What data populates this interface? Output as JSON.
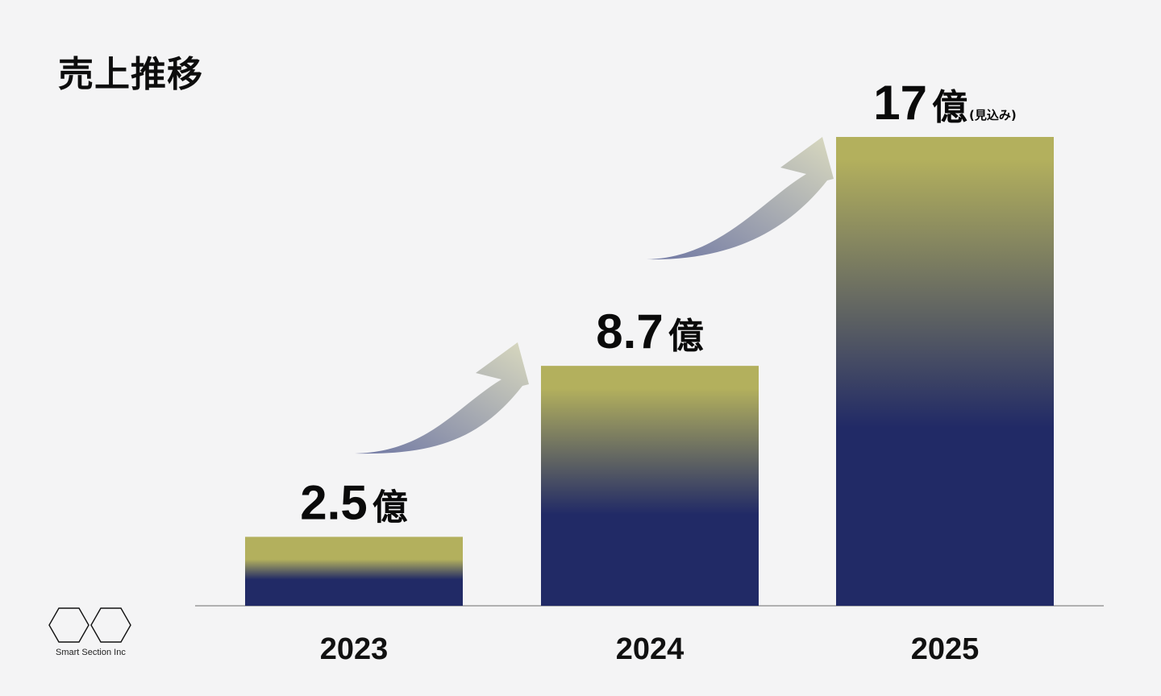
{
  "title": "売上推移",
  "chart_data": {
    "type": "bar",
    "categories": [
      "2023",
      "2024",
      "2025"
    ],
    "values": [
      2.5,
      8.7,
      17
    ],
    "value_labels": [
      "2.5",
      "8.7",
      "17"
    ],
    "unit": "億",
    "annotations": [
      "",
      "",
      "(見込み)"
    ],
    "colors": {
      "bar_top": "#b3b05d",
      "bar_bottom": "#212a66",
      "arrow_start": "#6f77a3",
      "arrow_end": "#d9d9bf",
      "axis": "#999999"
    }
  },
  "logo": {
    "text": "Smart Section Inc",
    "icon": "hexagon-pair-logo-icon"
  }
}
